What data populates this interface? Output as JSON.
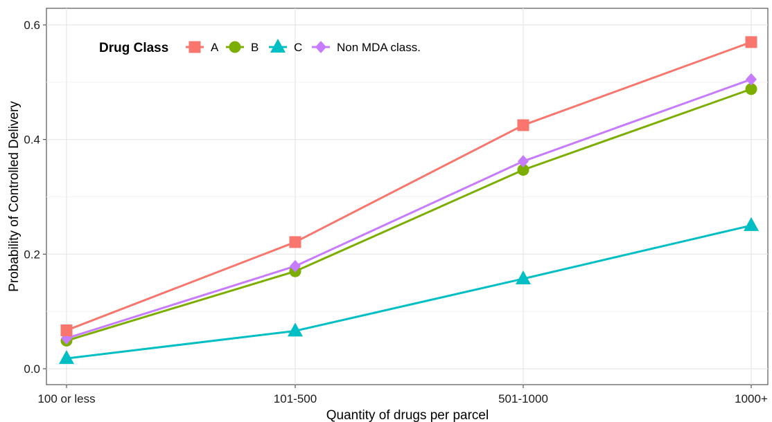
{
  "chart_data": {
    "type": "line",
    "title": "",
    "xlabel": "Quantity of drugs per parcel",
    "ylabel": "Probability of Controlled Delivery",
    "categories": [
      "100 or less",
      "101-500",
      "501-1000",
      "1000+"
    ],
    "ylim": [
      0,
      0.6
    ],
    "yticks": [
      "0.0",
      "0.2",
      "0.4",
      "0.6"
    ],
    "grid": true,
    "legend": {
      "title": "Drug Class",
      "placement": "top-left inside"
    },
    "series": [
      {
        "name": "A",
        "color": "#F8766D",
        "marker": "square",
        "values": [
          0.067,
          0.221,
          0.425,
          0.57
        ]
      },
      {
        "name": "B",
        "color": "#7CAE00",
        "marker": "circle",
        "values": [
          0.049,
          0.17,
          0.347,
          0.488
        ]
      },
      {
        "name": "C",
        "color": "#00BFC4",
        "marker": "triangle",
        "values": [
          0.018,
          0.066,
          0.157,
          0.25
        ]
      },
      {
        "name": "Non MDA class.",
        "color": "#C77CFF",
        "marker": "diamond",
        "values": [
          0.053,
          0.179,
          0.362,
          0.505
        ]
      }
    ]
  }
}
